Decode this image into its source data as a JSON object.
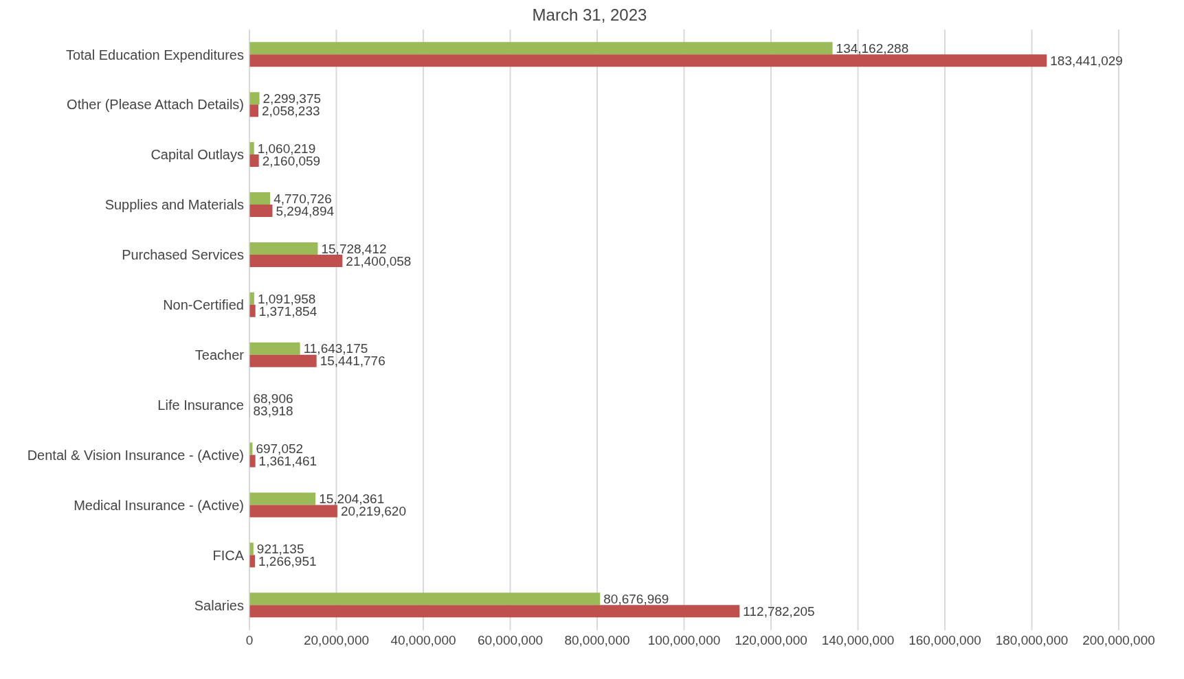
{
  "chart_data": {
    "type": "bar",
    "orientation": "horizontal",
    "title": "March 31, 2023",
    "categories": [
      "Total Education Expenditures",
      "Other (Please Attach Details)",
      "Capital Outlays",
      "Supplies and Materials",
      "Purchased Services",
      "Non-Certified",
      "Teacher",
      "Life Insurance",
      "Dental & Vision Insurance - (Active)",
      "Medical Insurance - (Active)",
      "FICA",
      "Salaries"
    ],
    "series": [
      {
        "color": "#9bbb59",
        "values": [
          134162288,
          2299375,
          1060219,
          4770726,
          15728412,
          1091958,
          11643175,
          68906,
          697052,
          15204361,
          921135,
          80676969
        ],
        "value_labels": [
          "134,162,288",
          "2,299,375",
          "1,060,219",
          "4,770,726",
          "15,728,412",
          "1,091,958",
          "11,643,175",
          "68,906",
          "697,052",
          "15,204,361",
          "921,135",
          "80,676,969"
        ]
      },
      {
        "color": "#c0504d",
        "values": [
          183441029,
          2058233,
          2160059,
          5294894,
          21400058,
          1371854,
          15441776,
          83918,
          1361461,
          20219620,
          1266951,
          112782205
        ],
        "value_labels": [
          "183,441,029",
          "2,058,233",
          "2,160,059",
          "5,294,894",
          "21,400,058",
          "1,371,854",
          "15,441,776",
          "83,918",
          "1,361,461",
          "20,219,620",
          "1,266,951",
          "112,782,205"
        ]
      }
    ],
    "xlim": [
      0,
      200000000
    ],
    "xticks": [
      0,
      {
        "value": 20000000,
        "label": "20,000,000"
      },
      {
        "value": 40000000,
        "label": "40,000,000"
      },
      {
        "value": 60000000,
        "label": "60,000,000"
      },
      {
        "value": 80000000,
        "label": "80,000,000"
      },
      {
        "value": 100000000,
        "label": "100,000,000"
      },
      {
        "value": 120000000,
        "label": "120,000,000"
      },
      {
        "value": 140000000,
        "label": "140,000,000"
      },
      {
        "value": 160000000,
        "label": "160,000,000"
      },
      {
        "value": 180000000,
        "label": "180,000,000"
      },
      {
        "value": 200000000,
        "label": "200,000,000"
      }
    ],
    "grid": "x",
    "legend": false
  }
}
